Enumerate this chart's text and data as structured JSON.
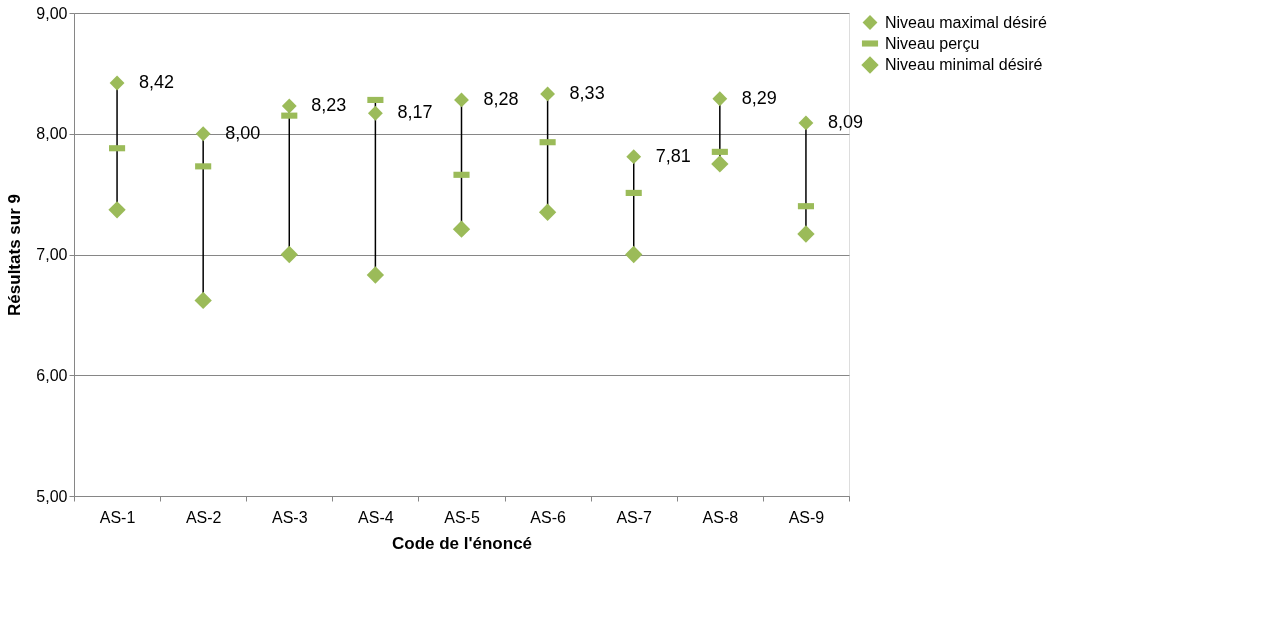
{
  "chart_data": {
    "type": "scatter",
    "xlabel": "Code de l'énoncé",
    "ylabel": "Résultats sur 9",
    "categories": [
      "AS-1",
      "AS-2",
      "AS-3",
      "AS-4",
      "AS-5",
      "AS-6",
      "AS-7",
      "AS-8",
      "AS-9"
    ],
    "series": [
      {
        "name": "Niveau maximal désiré",
        "color": "#9bbb59",
        "marker": "diamond",
        "values": [
          8.42,
          8.0,
          8.23,
          8.17,
          8.28,
          8.33,
          7.81,
          8.29,
          8.09
        ],
        "value_labels": [
          "8,42",
          "8,00",
          "8,23",
          "8,17",
          "8,28",
          "8,33",
          "7,81",
          "8,29",
          "8,09"
        ]
      },
      {
        "name": "Niveau perçu",
        "color": "#9bbb59",
        "values": [
          7.88,
          7.73,
          8.15,
          8.28,
          7.66,
          7.93,
          7.51,
          7.85,
          7.4
        ]
      },
      {
        "name": "Niveau minimal désiré",
        "color": "#9bbb59",
        "marker": "diamond",
        "values": [
          7.37,
          6.62,
          7.0,
          6.83,
          7.21,
          7.35,
          7.0,
          7.75,
          7.17
        ]
      }
    ],
    "ylim": [
      5,
      9
    ],
    "yticks": [
      {
        "value": 5,
        "label": "5,00"
      },
      {
        "value": 6,
        "label": "6,00"
      },
      {
        "value": 7,
        "label": "7,00"
      },
      {
        "value": 8,
        "label": "8,00"
      },
      {
        "value": 9,
        "label": "9,00"
      }
    ],
    "grid": "y",
    "legend": "right"
  }
}
